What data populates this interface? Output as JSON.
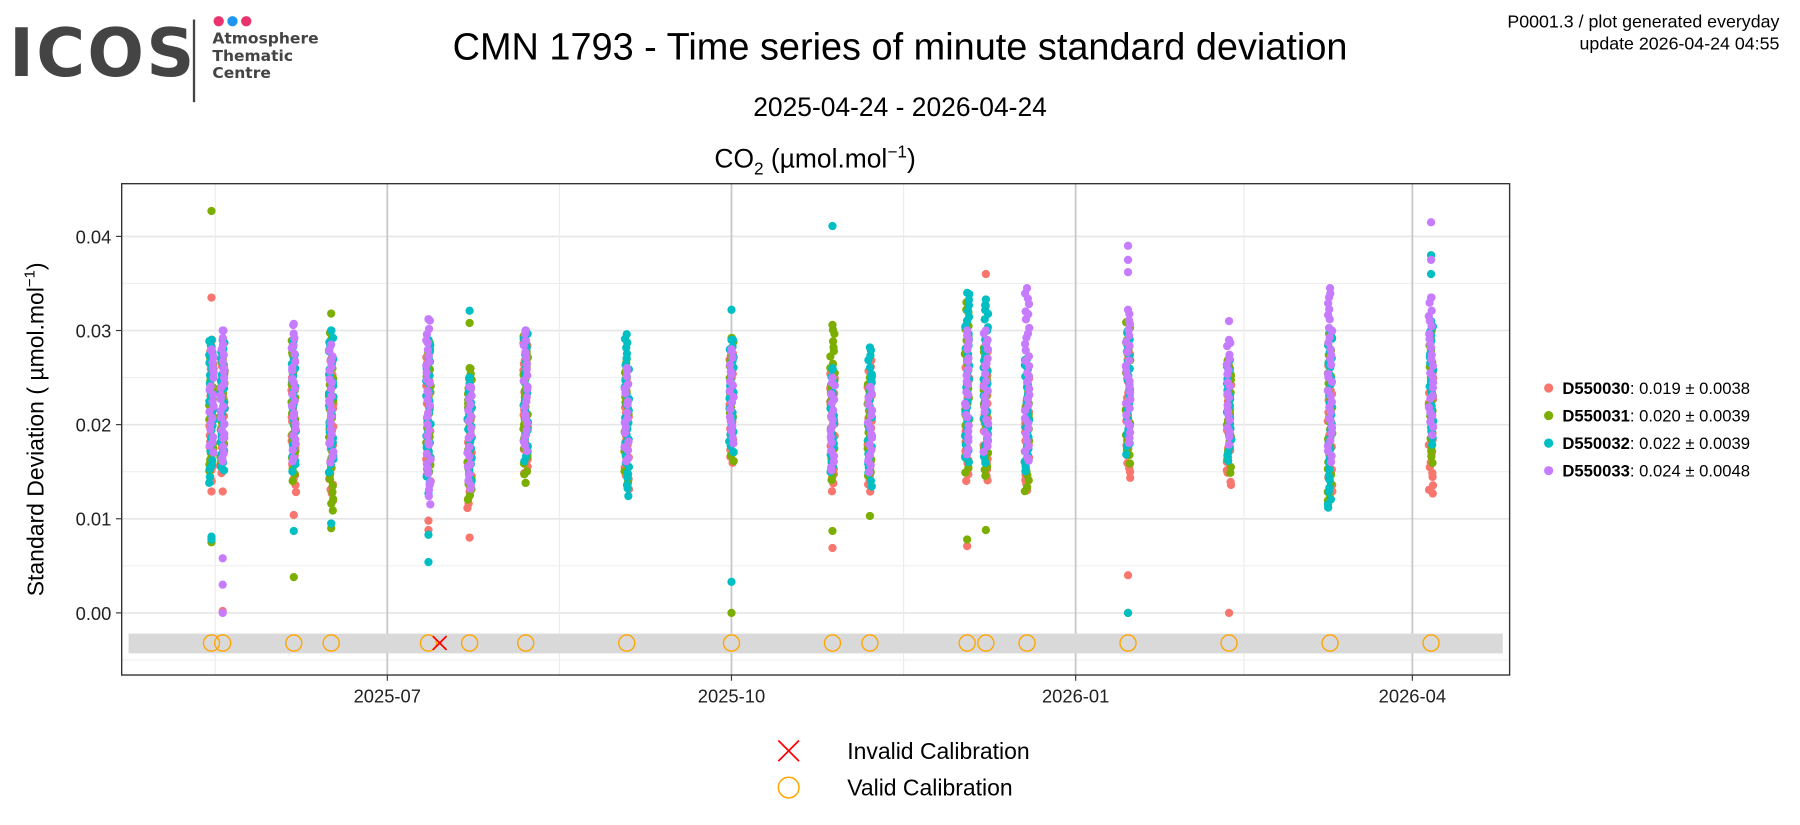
{
  "logo": {
    "brand": "ICOS",
    "lines": [
      "Atmosphere",
      "Thematic",
      "Centre"
    ],
    "dot_colors": [
      "#e8336f",
      "#1e96f0",
      "#e8336f"
    ]
  },
  "header": {
    "title": "CMN 1793 - Time series of minute standard deviation",
    "subtitle": "2025-04-24 - 2026-04-24",
    "info_line1": "P0001.3 / plot generated everyday",
    "info_line2": "update  2026-04-24 04:55"
  },
  "chart_data": {
    "type": "scatter",
    "title": "CO2 (µmol.mol−1)",
    "title_parts": {
      "main": "CO",
      "sub": "2",
      "unit": " (µmol.mol",
      "sup": "−1",
      "close": ")"
    },
    "ylabel": "Standard Deviation ( µmol.mol−1)",
    "ylabel_parts": {
      "main": "Standard Deviation ( µmol.mol",
      "sup": "−1",
      "close": ")"
    },
    "xlabel": "",
    "xlim": [
      "2025-04-21",
      "2026-04-27"
    ],
    "ylim": [
      -0.0066,
      0.0456
    ],
    "grid": true,
    "xticks": [
      {
        "date": "2025-07-01",
        "label": "2025-07"
      },
      {
        "date": "2025-10-01",
        "label": "2025-10"
      },
      {
        "date": "2026-01-01",
        "label": "2026-01"
      },
      {
        "date": "2026-04-01",
        "label": "2026-04"
      }
    ],
    "xminor": [
      "2025-05-16",
      "2025-08-16",
      "2025-11-16",
      "2026-02-15"
    ],
    "yticks": [
      {
        "value": 0.0,
        "label": "0.00"
      },
      {
        "value": 0.01,
        "label": "0.01"
      },
      {
        "value": 0.02,
        "label": "0.02"
      },
      {
        "value": 0.03,
        "label": "0.03"
      },
      {
        "value": 0.04,
        "label": "0.04"
      }
    ],
    "series": [
      {
        "name": "D550030",
        "stat": ": 0.019 ± 0.0038",
        "color": "#F8766D"
      },
      {
        "name": "D550031",
        "stat": ": 0.020 ± 0.0039",
        "color": "#7CAE00"
      },
      {
        "name": "D550032",
        "stat": ": 0.022 ± 0.0039",
        "color": "#00BFC4"
      },
      {
        "name": "D550033",
        "stat": ": 0.024 ± 0.0048",
        "color": "#C77CFF"
      }
    ],
    "legend_position": "right",
    "groups": [
      {
        "date": "2025-05-15",
        "data": [
          {
            "range": [
              0.014,
              0.029
            ],
            "outliers": [
              0.0335,
              0.0129
            ]
          },
          {
            "range": [
              0.015,
              0.029
            ],
            "outliers": [
              0.0427,
              0.0075
            ]
          },
          {
            "range": [
              0.014,
              0.029
            ],
            "outliers": [
              0.0081,
              0.0078
            ]
          },
          {
            "range": [
              0.017,
              0.028
            ],
            "outliers": []
          }
        ]
      },
      {
        "date": "2025-05-18",
        "data": [
          {
            "range": [
              0.015,
              0.027
            ],
            "outliers": [
              0.0129,
              0.0002
            ]
          },
          {
            "range": [
              0.016,
              0.027
            ],
            "outliers": []
          },
          {
            "range": [
              0.015,
              0.029
            ],
            "outliers": []
          },
          {
            "range": [
              0.016,
              0.03
            ],
            "outliers": [
              0.0058,
              0.003,
              0.0
            ]
          }
        ]
      },
      {
        "date": "2025-06-06",
        "data": [
          {
            "range": [
              0.013,
              0.027
            ],
            "outliers": [
              0.0104
            ]
          },
          {
            "range": [
              0.014,
              0.029
            ],
            "outliers": [
              0.0038
            ]
          },
          {
            "range": [
              0.015,
              0.029
            ],
            "outliers": [
              0.0087
            ]
          },
          {
            "range": [
              0.016,
              0.0307
            ],
            "outliers": []
          }
        ]
      },
      {
        "date": "2025-06-16",
        "data": [
          {
            "range": [
              0.012,
              0.027
            ],
            "outliers": []
          },
          {
            "range": [
              0.011,
              0.03
            ],
            "outliers": [
              0.0318,
              0.009
            ]
          },
          {
            "range": [
              0.015,
              0.03
            ],
            "outliers": [
              0.0095
            ]
          },
          {
            "range": [
              0.016,
              0.0285
            ],
            "outliers": []
          }
        ]
      },
      {
        "date": "2025-07-12",
        "data": [
          {
            "range": [
              0.014,
              0.028
            ],
            "outliers": [
              0.0098,
              0.0088
            ]
          },
          {
            "range": [
              0.015,
              0.029
            ],
            "outliers": []
          },
          {
            "range": [
              0.014,
              0.029
            ],
            "outliers": [
              0.0127,
              0.0083,
              0.0054
            ]
          },
          {
            "range": [
              0.0117,
              0.0312
            ],
            "outliers": []
          }
        ]
      },
      {
        "date": "2025-07-23",
        "data": [
          {
            "range": [
              0.011,
              0.025
            ],
            "outliers": [
              0.008
            ]
          },
          {
            "range": [
              0.012,
              0.026
            ],
            "outliers": [
              0.0308
            ]
          },
          {
            "range": [
              0.014,
              0.025
            ],
            "outliers": [
              0.0321
            ]
          },
          {
            "range": [
              0.013,
              0.024
            ],
            "outliers": []
          }
        ]
      },
      {
        "date": "2025-08-07",
        "data": [
          {
            "range": [
              0.015,
              0.029
            ],
            "outliers": []
          },
          {
            "range": [
              0.014,
              0.03
            ],
            "outliers": []
          },
          {
            "range": [
              0.016,
              0.03
            ],
            "outliers": []
          },
          {
            "range": [
              0.017,
              0.03
            ],
            "outliers": []
          }
        ]
      },
      {
        "date": "2025-09-03",
        "data": [
          {
            "range": [
              0.013,
              0.026
            ],
            "outliers": []
          },
          {
            "range": [
              0.014,
              0.027
            ],
            "outliers": []
          },
          {
            "range": [
              0.0125,
              0.0296
            ],
            "outliers": []
          },
          {
            "range": [
              0.016,
              0.026
            ],
            "outliers": []
          }
        ]
      },
      {
        "date": "2025-10-01",
        "data": [
          {
            "range": [
              0.016,
              0.028
            ],
            "outliers": []
          },
          {
            "range": [
              0.016,
              0.0292
            ],
            "outliers": [
              0.0
            ]
          },
          {
            "range": [
              0.017,
              0.029
            ],
            "outliers": [
              0.0322,
              0.0033
            ]
          },
          {
            "range": [
              0.018,
              0.028
            ],
            "outliers": []
          }
        ]
      },
      {
        "date": "2025-10-28",
        "data": [
          {
            "range": [
              0.013,
              0.026
            ],
            "outliers": [
              0.0069
            ]
          },
          {
            "range": [
              0.014,
              0.0306
            ],
            "outliers": [
              0.0087
            ]
          },
          {
            "range": [
              0.015,
              0.026
            ],
            "outliers": [
              0.0411
            ]
          },
          {
            "range": [
              0.015,
              0.025
            ],
            "outliers": []
          }
        ]
      },
      {
        "date": "2025-11-07",
        "data": [
          {
            "range": [
              0.013,
              0.027
            ],
            "outliers": []
          },
          {
            "range": [
              0.0145,
              0.025
            ],
            "outliers": [
              0.0103
            ]
          },
          {
            "range": [
              0.0135,
              0.0282
            ],
            "outliers": []
          },
          {
            "range": [
              0.015,
              0.024
            ],
            "outliers": []
          }
        ]
      },
      {
        "date": "2025-12-03",
        "data": [
          {
            "range": [
              0.014,
              0.029
            ],
            "outliers": [
              0.0071
            ]
          },
          {
            "range": [
              0.015,
              0.033
            ],
            "outliers": [
              0.0078
            ]
          },
          {
            "range": [
              0.016,
              0.034
            ],
            "outliers": []
          },
          {
            "range": [
              0.017,
              0.03
            ],
            "outliers": []
          }
        ]
      },
      {
        "date": "2025-12-08",
        "data": [
          {
            "range": [
              0.014,
              0.028
            ],
            "outliers": [
              0.036,
              0.0326
            ]
          },
          {
            "range": [
              0.0145,
              0.0285
            ],
            "outliers": [
              0.0088
            ]
          },
          {
            "range": [
              0.016,
              0.0333
            ],
            "outliers": []
          },
          {
            "range": [
              0.017,
              0.03
            ],
            "outliers": []
          }
        ]
      },
      {
        "date": "2025-12-19",
        "data": [
          {
            "range": [
              0.013,
              0.025
            ],
            "outliers": []
          },
          {
            "range": [
              0.0128,
              0.024
            ],
            "outliers": []
          },
          {
            "range": [
              0.015,
              0.027
            ],
            "outliers": []
          },
          {
            "range": [
              0.016,
              0.0345
            ],
            "outliers": []
          }
        ]
      },
      {
        "date": "2026-01-15",
        "data": [
          {
            "range": [
              0.0143,
              0.028
            ],
            "outliers": [
              0.004
            ]
          },
          {
            "range": [
              0.016,
              0.031
            ],
            "outliers": [
              0.0
            ]
          },
          {
            "range": [
              0.017,
              0.03
            ],
            "outliers": [
              0.0
            ]
          },
          {
            "range": [
              0.018,
              0.0322
            ],
            "outliers": [
              0.039,
              0.0375,
              0.0362
            ]
          }
        ]
      },
      {
        "date": "2026-02-11",
        "data": [
          {
            "range": [
              0.0135,
              0.026
            ],
            "outliers": [
              0.0
            ]
          },
          {
            "range": [
              0.015,
              0.027
            ],
            "outliers": []
          },
          {
            "range": [
              0.016,
              0.027
            ],
            "outliers": []
          },
          {
            "range": [
              0.018,
              0.029
            ],
            "outliers": [
              0.031
            ]
          }
        ]
      },
      {
        "date": "2026-03-10",
        "data": [
          {
            "range": [
              0.013,
              0.027
            ],
            "outliers": []
          },
          {
            "range": [
              0.0118,
              0.03
            ],
            "outliers": []
          },
          {
            "range": [
              0.011,
              0.03
            ],
            "outliers": []
          },
          {
            "range": [
              0.016,
              0.0345
            ],
            "outliers": []
          }
        ]
      },
      {
        "date": "2026-04-06",
        "data": [
          {
            "range": [
              0.0125,
              0.028
            ],
            "outliers": []
          },
          {
            "range": [
              0.016,
              0.03
            ],
            "outliers": []
          },
          {
            "range": [
              0.018,
              0.031
            ],
            "outliers": [
              0.038,
              0.036
            ]
          },
          {
            "range": [
              0.019,
              0.0335
            ],
            "outliers": [
              0.0415,
              0.0375
            ]
          }
        ]
      }
    ],
    "calibration_band": [
      -0.0043,
      -0.0022
    ],
    "calibration_marker_value": -0.0032,
    "valid_calibrations": [
      "2025-05-15",
      "2025-05-18",
      "2025-06-06",
      "2025-06-16",
      "2025-07-12",
      "2025-07-23",
      "2025-08-07",
      "2025-09-03",
      "2025-10-01",
      "2025-10-28",
      "2025-11-07",
      "2025-12-03",
      "2025-12-08",
      "2025-12-19",
      "2026-01-15",
      "2026-02-11",
      "2026-03-10",
      "2026-04-06"
    ],
    "invalid_calibrations": [
      "2025-07-15"
    ],
    "calibration_legend": [
      {
        "label": "Invalid Calibration",
        "color": "#FF0000",
        "shape": "cross"
      },
      {
        "label": "Valid Calibration",
        "color": "#FFA500",
        "shape": "circle"
      }
    ]
  }
}
